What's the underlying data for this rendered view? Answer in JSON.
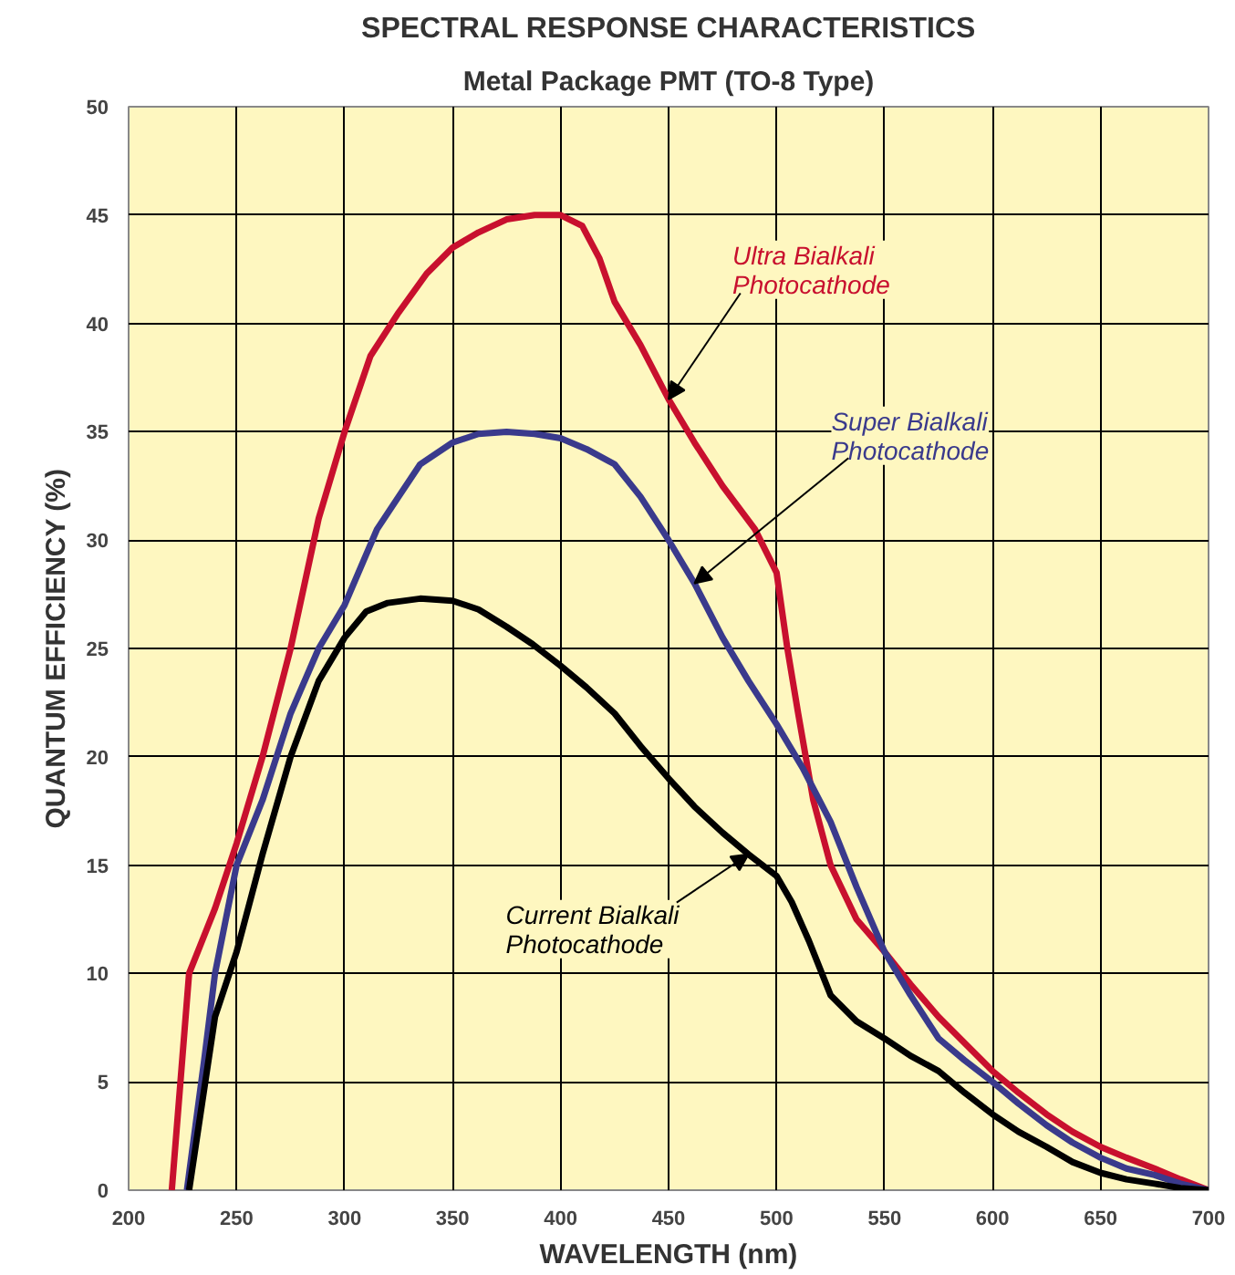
{
  "chart_data": {
    "type": "line",
    "title": "SPECTRAL RESPONSE CHARACTERISTICS",
    "subtitle": "Metal Package PMT (TO-8 Type)",
    "xlabel": "WAVELENGTH (nm)",
    "ylabel": "QUANTUM EFFICIENCY (%)",
    "series": [
      {
        "name": "Ultra Bialkali\nPhotocathode",
        "color": "#c8102e",
        "x": [
          220,
          224,
          228,
          240,
          250,
          262,
          275,
          288,
          300,
          312,
          325,
          338,
          350,
          362,
          375,
          388,
          400,
          410,
          418,
          425,
          437,
          450,
          462,
          475,
          490,
          500,
          505,
          510,
          517,
          525,
          537,
          550,
          562,
          575,
          587,
          600,
          612,
          625,
          637,
          650,
          662,
          675,
          687,
          700
        ],
        "values": [
          0,
          5,
          10,
          13,
          16,
          20,
          25,
          31,
          35,
          38.5,
          40.5,
          42.3,
          43.5,
          44.2,
          44.8,
          45,
          45,
          44.5,
          43,
          41,
          39,
          36.5,
          34.5,
          32.5,
          30.5,
          28.5,
          25,
          22,
          18,
          15,
          12.5,
          11,
          9.5,
          8,
          6.8,
          5.5,
          4.5,
          3.5,
          2.7,
          2,
          1.5,
          1,
          0.5,
          0
        ]
      },
      {
        "name": "Super Bialkali\nPhotocathode",
        "color": "#3a3a8c",
        "x": [
          227,
          231,
          235,
          240,
          250,
          262,
          275,
          288,
          300,
          315,
          325,
          335,
          350,
          362,
          375,
          388,
          400,
          412,
          425,
          437,
          450,
          462,
          475,
          487,
          500,
          512,
          525,
          537,
          550,
          562,
          575,
          587,
          600,
          612,
          625,
          637,
          650,
          662,
          675,
          687,
          700
        ],
        "values": [
          0,
          3,
          6,
          10,
          15,
          18,
          22,
          25,
          27,
          30.5,
          32,
          33.5,
          34.5,
          34.9,
          35,
          34.9,
          34.7,
          34.2,
          33.5,
          32,
          30,
          28,
          25.5,
          23.5,
          21.5,
          19.5,
          17,
          14,
          11,
          9,
          7,
          6,
          5,
          4,
          3,
          2.2,
          1.5,
          1,
          0.7,
          0.3,
          0
        ]
      },
      {
        "name": "Current Bialkali\nPhotocathode",
        "color": "#000000",
        "x": [
          228,
          234,
          240,
          250,
          262,
          275,
          288,
          300,
          310,
          320,
          335,
          350,
          362,
          375,
          387,
          400,
          412,
          425,
          437,
          450,
          462,
          475,
          487,
          500,
          507,
          515,
          525,
          537,
          550,
          562,
          575,
          587,
          600,
          612,
          625,
          637,
          650,
          662,
          675,
          687,
          700
        ],
        "values": [
          0,
          4,
          8,
          11,
          15.5,
          20,
          23.5,
          25.5,
          26.7,
          27.1,
          27.3,
          27.2,
          26.8,
          26,
          25.2,
          24.2,
          23.2,
          22,
          20.5,
          19,
          17.7,
          16.5,
          15.5,
          14.5,
          13.3,
          11.5,
          9,
          7.8,
          7,
          6.2,
          5.5,
          4.5,
          3.5,
          2.7,
          2,
          1.3,
          0.8,
          0.5,
          0.3,
          0.1,
          0
        ]
      }
    ],
    "xlim": [
      200,
      700
    ],
    "xticks": [
      200,
      250,
      300,
      350,
      400,
      450,
      500,
      550,
      600,
      650,
      700
    ],
    "ylim": [
      0,
      50
    ],
    "yticks": [
      0,
      5,
      10,
      15,
      20,
      25,
      30,
      35,
      40,
      45,
      50
    ],
    "grid": true,
    "marker": "none",
    "line_style": "solid"
  }
}
